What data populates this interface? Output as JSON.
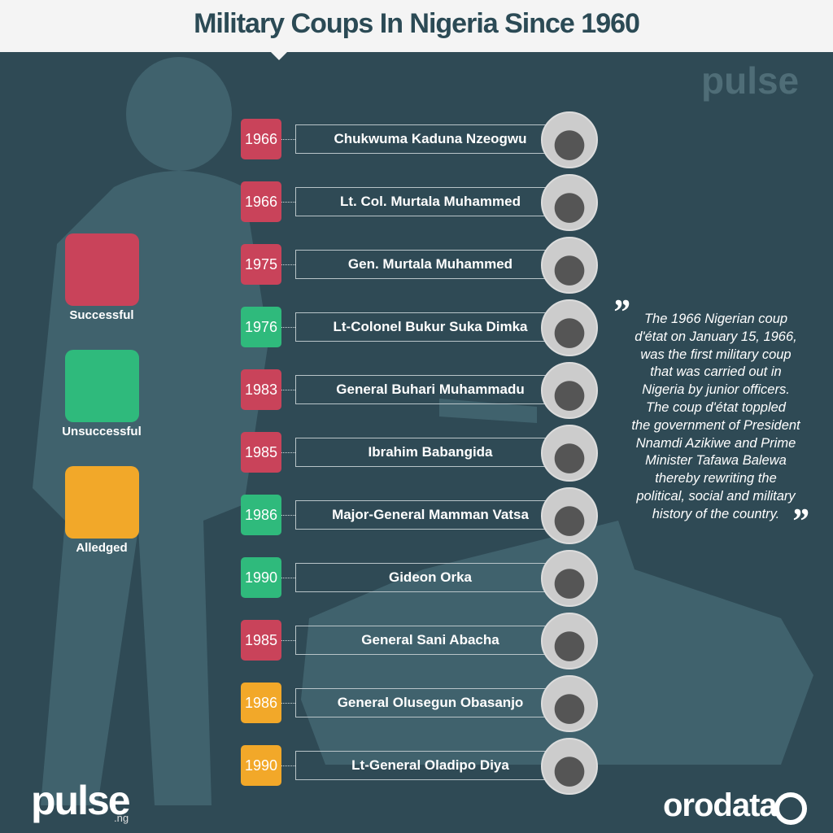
{
  "header": {
    "title": "Military Coups In Nigeria Since 1960"
  },
  "legend": [
    {
      "label": "Successful",
      "color": "#c9435a"
    },
    {
      "label": "Unsuccessful",
      "color": "#2fba7c"
    },
    {
      "label": "Alledged",
      "color": "#f2a829"
    }
  ],
  "entries": [
    {
      "year": "1966",
      "name": "Chukwuma Kaduna Nzeogwu",
      "color": "#c9435a"
    },
    {
      "year": "1966",
      "name": "Lt. Col. Murtala Muhammed",
      "color": "#c9435a"
    },
    {
      "year": "1975",
      "name": "Gen. Murtala Muhammed",
      "color": "#c9435a"
    },
    {
      "year": "1976",
      "name": "Lt-Colonel Bukur Suka Dimka",
      "color": "#2fba7c"
    },
    {
      "year": "1983",
      "name": "General Buhari Muhammadu",
      "color": "#c9435a"
    },
    {
      "year": "1985",
      "name": "Ibrahim Babangida",
      "color": "#c9435a"
    },
    {
      "year": "1986",
      "name": "Major-General Mamman Vatsa",
      "color": "#2fba7c"
    },
    {
      "year": "1990",
      "name": "Gideon Orka",
      "color": "#2fba7c"
    },
    {
      "year": "1985",
      "name": "General Sani Abacha",
      "color": "#c9435a"
    },
    {
      "year": "1986",
      "name": "General Olusegun Obasanjo",
      "color": "#f2a829"
    },
    {
      "year": "1990",
      "name": "Lt-General Oladipo Diya",
      "color": "#f2a829"
    }
  ],
  "quote": {
    "open": "”",
    "close": "”",
    "lines": [
      "The 1966 Nigerian coup",
      "d'état on January 15, 1966,",
      "was the first military coup",
      "that was carried out in",
      "Nigeria by junior officers.",
      "The coup d'état toppled",
      "the government of President",
      "Nnamdi Azikiwe and Prime",
      "Minister Tafawa Balewa",
      "thereby rewriting the",
      "political, social and military",
      "history of the country."
    ]
  },
  "logos": {
    "pulse": "pulse",
    "pulse_suffix": ".ng",
    "orodata": "orodata"
  }
}
